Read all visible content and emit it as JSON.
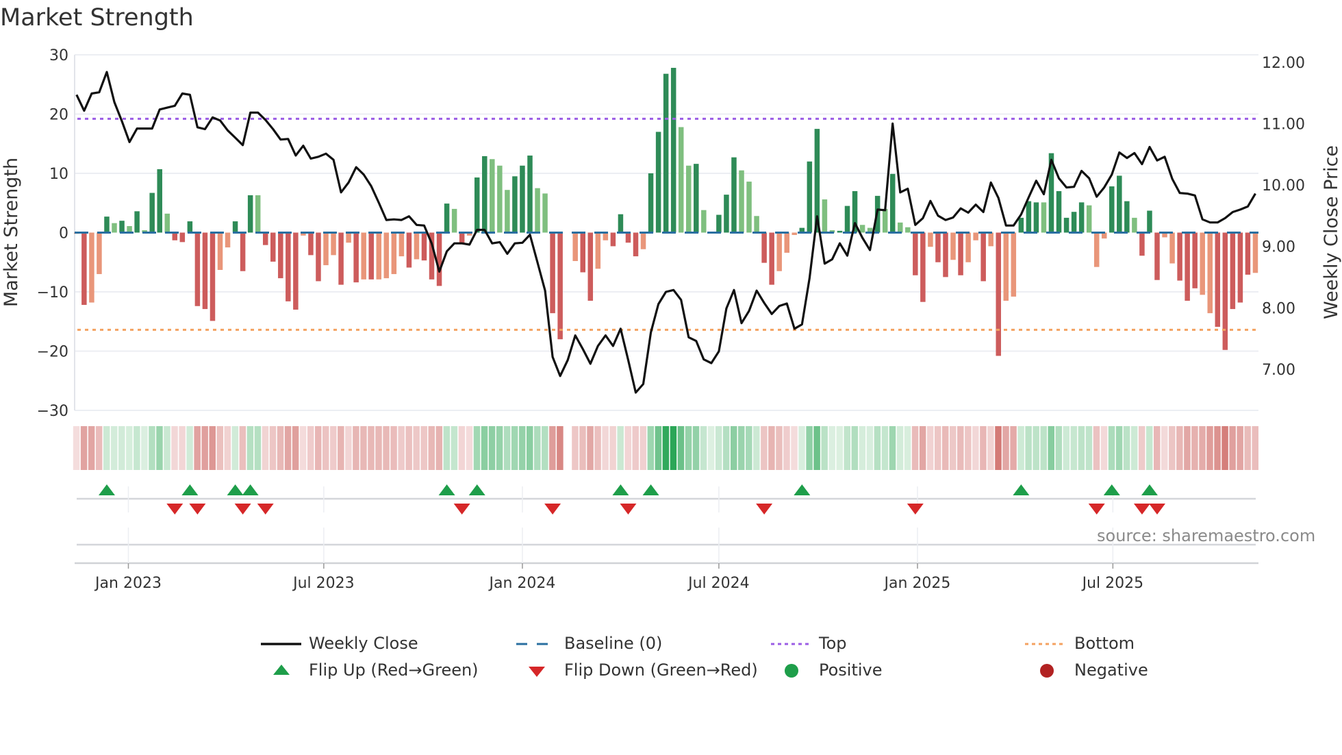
{
  "title": "Market Strength",
  "source": "source: sharemaestro.com",
  "legend": [
    {
      "label": "Weekly Close",
      "kind": "line",
      "color": "#111111"
    },
    {
      "label": "Baseline (0)",
      "kind": "dash",
      "color": "#2a6fa0"
    },
    {
      "label": "Top",
      "kind": "dot",
      "color": "#9b5de5"
    },
    {
      "label": "Bottom",
      "kind": "dot",
      "color": "#f4a261"
    },
    {
      "label": "Flip Up (Red→Green)",
      "kind": "tri-up",
      "color": "#1e9e4a"
    },
    {
      "label": "Flip Down (Green→Red)",
      "kind": "tri-down",
      "color": "#d62728"
    },
    {
      "label": "Positive",
      "kind": "circle",
      "color": "#1e9e4a"
    },
    {
      "label": "Negative",
      "kind": "circle",
      "color": "#b22222"
    }
  ],
  "colors": {
    "pos_strong": "#2e8b57",
    "pos_weak": "#7fbf7f",
    "neg_strong": "#cd5c5c",
    "neg_weak": "#e9967a",
    "line": "#111111",
    "baseline": "#2a6fa0",
    "top": "#9b5de5",
    "bottom": "#f4a261",
    "flip_up": "#1e9e4a",
    "flip_down": "#d62728"
  },
  "chart_data": {
    "type": "bar+line",
    "title": "Market Strength",
    "ylabel": "Market Strength",
    "y2label": "Weekly Close Price",
    "ylim": [
      -30,
      30
    ],
    "y2lim": [
      6.33,
      12.12
    ],
    "yticks": [
      "30",
      "20",
      "10",
      "0",
      "−10",
      "−20",
      "−30"
    ],
    "ytick_values": [
      30,
      20,
      10,
      0,
      -10,
      -20,
      -30
    ],
    "y2ticks": [
      "12.00",
      "11.00",
      "10.00",
      "9.00",
      "8.00",
      "7.00"
    ],
    "y2tick_values": [
      12,
      11,
      10,
      9,
      8,
      7
    ],
    "xticks": [
      {
        "label": "Jan 2023",
        "date": "2023-01-01"
      },
      {
        "label": "Jul 2023",
        "date": "2023-07-01"
      },
      {
        "label": "Jan 2024",
        "date": "2024-01-01"
      },
      {
        "label": "Jul 2024",
        "date": "2024-07-01"
      },
      {
        "label": "Jan 2025",
        "date": "2025-01-01"
      },
      {
        "label": "Jul 2025",
        "date": "2025-07-01"
      }
    ],
    "x_start": "2022-11-14",
    "x_step_days": 7,
    "top_level": 19.2,
    "bottom_level": -16.4,
    "grid": true,
    "legend_position": "bottom",
    "strength": [
      -0.2,
      -12.2,
      -11.8,
      -7,
      2.7,
      1.6,
      2,
      1.1,
      3.6,
      0.4,
      6.7,
      10.7,
      3.2,
      -1.3,
      -1.6,
      1.9,
      -12.4,
      -12.9,
      -14.9,
      -6.3,
      -2.5,
      1.9,
      -6.5,
      6.3,
      6.3,
      -2.1,
      -4.9,
      -7.7,
      -11.6,
      -13,
      -0.5,
      -3.8,
      -8.2,
      -5.5,
      -3.8,
      -8.8,
      -1.7,
      -8.4,
      -7.9,
      -7.9,
      -7.9,
      -7.7,
      -7,
      -4,
      -5.9,
      -4.5,
      -4.7,
      -7.9,
      -9,
      4.9,
      4,
      -1.7,
      -0.5,
      9.3,
      12.9,
      12.4,
      11.3,
      7.2,
      9.5,
      11.3,
      13,
      7.5,
      6.6,
      -13.6,
      -18,
      null,
      -4.8,
      -6.7,
      -11.5,
      -6.1,
      -1.3,
      -2.3,
      3.1,
      -1.7,
      -4,
      -2.8,
      10,
      17,
      26.8,
      27.8,
      17.8,
      11.3,
      11.6,
      3.8,
      0.1,
      3,
      6.4,
      12.7,
      10.5,
      8.6,
      2.8,
      -5.1,
      -8.8,
      -6.5,
      -3.4,
      -0.4,
      0.8,
      12,
      17.5,
      5.6,
      0.4,
      0.3,
      4.5,
      7,
      1.3,
      0.8,
      6.2,
      4,
      9.9,
      1.7,
      0.9,
      -7.2,
      -11.7,
      -2.4,
      -5,
      -7.5,
      -4.6,
      -7.2,
      -5,
      -1.3,
      -8.2,
      -2.3,
      -20.8,
      -11.5,
      -10.8,
      2.5,
      5.3,
      5.1,
      5.1,
      13.4,
      7,
      2.5,
      3.5,
      5.1,
      4.6,
      -5.8,
      -1,
      7.8,
      9.6,
      5.3,
      2.5,
      -3.9,
      3.7,
      -8,
      -0.8,
      -5.2,
      -8.1,
      -11.5,
      -9.4,
      -10.5,
      -13.6,
      -15.9,
      -19.8,
      -12.9,
      -11.8,
      -7.1,
      -6.8
    ],
    "shade": "LDLLDLDLDLDDLDDDDDDLLDDDLDDDDDLDDLLDLDLDLLLLDLDDDDLDLDDLLLDDDLLDDDLDDLLDDDDLDDDDLLDLLDDDLLLDDLLLDDDLLDDDLLDLDLLDDLDDLDLLDLDLLDDDLDDDDDLLLDDDLDDDLLDDDLLDDDDDLDDDDLLLL",
    "weekly_close": [
      11.47,
      11.21,
      11.49,
      11.51,
      11.84,
      11.35,
      11.04,
      10.7,
      10.92,
      10.92,
      10.92,
      11.23,
      11.26,
      11.29,
      11.49,
      11.47,
      10.94,
      10.91,
      11.1,
      11.05,
      10.89,
      10.77,
      10.65,
      11.18,
      11.18,
      11.06,
      10.91,
      10.74,
      10.75,
      10.48,
      10.64,
      10.43,
      10.46,
      10.51,
      10.41,
      9.88,
      10.04,
      10.29,
      10.17,
      9.98,
      9.71,
      9.43,
      9.44,
      9.43,
      9.49,
      9.35,
      9.34,
      9.05,
      8.59,
      8.92,
      9.05,
      9.05,
      9.03,
      9.27,
      9.27,
      9.05,
      9.07,
      8.88,
      9.05,
      9.06,
      9.19,
      8.74,
      8.28,
      7.2,
      6.89,
      7.15,
      7.55,
      7.33,
      7.09,
      7.38,
      7.55,
      7.38,
      7.66,
      7.15,
      6.62,
      6.76,
      7.6,
      8.06,
      8.26,
      8.29,
      8.13,
      7.52,
      7.46,
      7.16,
      7.1,
      7.29,
      7.99,
      8.29,
      7.75,
      7.95,
      8.28,
      8.08,
      7.9,
      8.03,
      8.07,
      7.66,
      7.73,
      8.48,
      9.49,
      8.72,
      8.79,
      9.05,
      8.85,
      9.38,
      9.14,
      8.94,
      9.6,
      9.59,
      11.0,
      9.88,
      9.94,
      9.35,
      9.46,
      9.74,
      9.5,
      9.43,
      9.47,
      9.62,
      9.55,
      9.68,
      9.56,
      10.04,
      9.79,
      9.34,
      9.34,
      9.52,
      9.8,
      10.07,
      9.85,
      10.41,
      10.11,
      9.96,
      9.97,
      10.23,
      10.11,
      9.81,
      9.96,
      10.17,
      10.53,
      10.44,
      10.52,
      10.34,
      10.62,
      10.4,
      10.46,
      10.1,
      9.87,
      9.86,
      9.83,
      9.44,
      9.39,
      9.39,
      9.46,
      9.56,
      9.6,
      9.65,
      9.86
    ]
  }
}
